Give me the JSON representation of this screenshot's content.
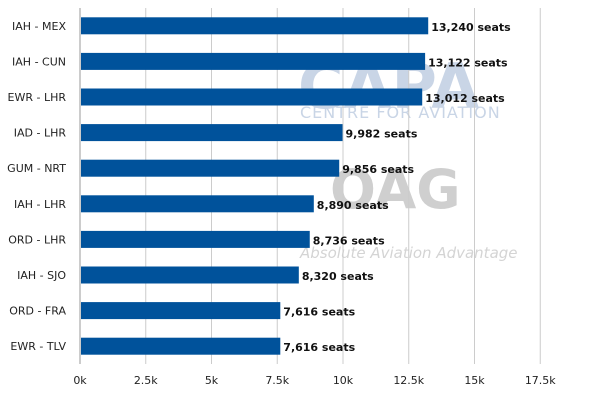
{
  "chart_data": {
    "type": "bar",
    "orientation": "horizontal",
    "title": "",
    "xlabel": "",
    "ylabel": "",
    "categories": [
      "IAH - MEX",
      "IAH - CUN",
      "EWR - LHR",
      "IAD - LHR",
      "GUM - NRT",
      "IAH - LHR",
      "ORD - LHR",
      "IAH - SJO",
      "ORD - FRA",
      "EWR - TLV"
    ],
    "values": [
      13240,
      13122,
      13012,
      9982,
      9856,
      8890,
      8736,
      8320,
      7616,
      7616
    ],
    "data_labels": [
      "13,240 seats",
      "13,122 seats",
      "13,012 seats",
      "9,982 seats",
      "9,856 seats",
      "8,890 seats",
      "8,736 seats",
      "8,320 seats",
      "7,616 seats",
      "7,616 seats"
    ],
    "xlim": [
      0,
      20000
    ],
    "x_ticks": [
      0,
      2500,
      5000,
      7500,
      10000,
      12500,
      15000,
      17500
    ],
    "x_tick_labels": [
      "0k",
      "2.5k",
      "5k",
      "7.5k",
      "10k",
      "12.5k",
      "15k",
      "17.5k"
    ],
    "grid": "vertical",
    "legend": "none",
    "bar_color": "#00529b",
    "grid_color": "#cccccc"
  },
  "watermarks": {
    "capa_logo": "CAPA",
    "capa_name": "CENTRE FOR AVIATION",
    "oag_logo": "OAG",
    "oag_tagline": "Absolute Aviation Advantage"
  }
}
